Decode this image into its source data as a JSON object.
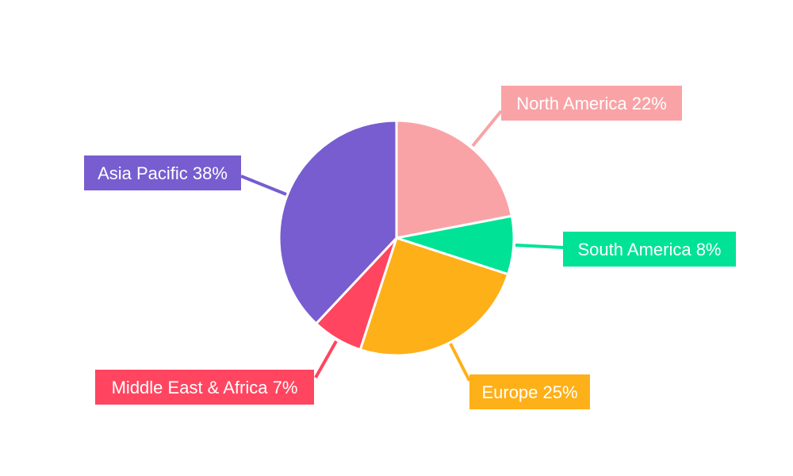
{
  "chart_data": {
    "type": "pie",
    "start": "top",
    "direction": "clockwise",
    "slices": [
      {
        "name": "North America",
        "value": 22,
        "label": "North America 22%",
        "color": "#f9a3a6"
      },
      {
        "name": "South America",
        "value": 8,
        "label": "South America 8%",
        "color": "#00e396"
      },
      {
        "name": "Europe",
        "value": 25,
        "label": "Europe 25%",
        "color": "#feb019"
      },
      {
        "name": "Middle East & Africa",
        "value": 7,
        "label": "Middle East & Africa 7%",
        "color": "#ff4560"
      },
      {
        "name": "Asia Pacific",
        "value": 38,
        "label": "Asia Pacific 38%",
        "color": "#775dd0"
      }
    ],
    "slice_border_color": "#ffffff",
    "label_text_color": "#ffffff"
  }
}
